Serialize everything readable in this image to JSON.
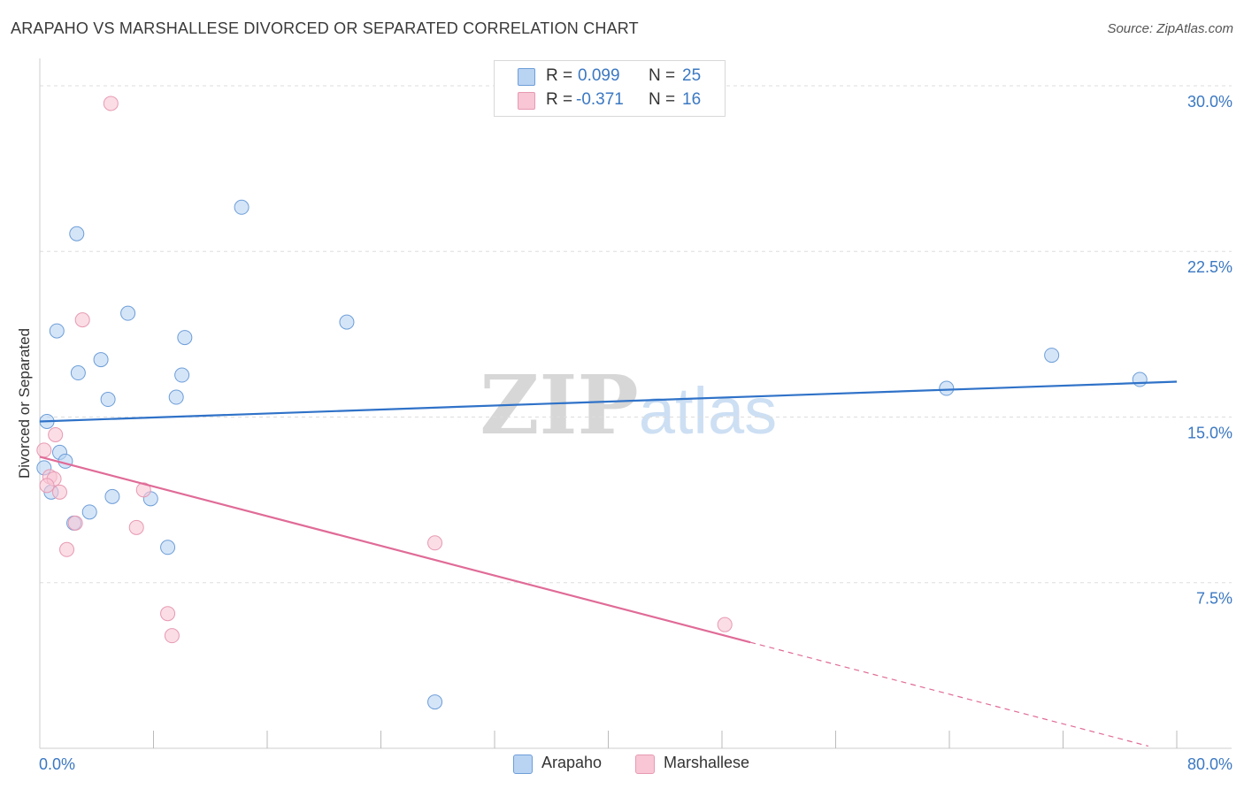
{
  "title": "ARAPAHO VS MARSHALLESE DIVORCED OR SEPARATED CORRELATION CHART",
  "source": "Source: ZipAtlas.com",
  "watermark": {
    "zip": "ZIP",
    "atlas": "atlas"
  },
  "legend_top": [
    {
      "r_label": "R =",
      "r_value": "0.099",
      "n_label": "N =",
      "n_value": "25"
    },
    {
      "r_label": "R =",
      "r_value": "-0.371",
      "n_label": "N =",
      "n_value": "16"
    }
  ],
  "colors": {
    "arapaho_fill": "#b9d3f3",
    "arapaho_stroke": "#6d9ed8",
    "arapaho_line": "#2f72c8",
    "marshallese_fill": "#f8c6d5",
    "marshallese_stroke": "#e79ab2",
    "marshallese_line": "#e06b97",
    "grid": "#dddddd",
    "tick_label": "#3b78c2"
  },
  "chart_data": {
    "type": "scatter",
    "title": "ARAPAHO VS MARSHALLESE DIVORCED OR SEPARATED CORRELATION CHART",
    "xlabel": "",
    "ylabel": "Divorced or Separated",
    "xlim": [
      0,
      80
    ],
    "ylim": [
      0,
      31.0
    ],
    "x_tick_labels": [
      "0.0%",
      "80.0%"
    ],
    "y_ticks": [
      7.5,
      15.0,
      22.5,
      30.0
    ],
    "y_tick_labels": [
      "7.5%",
      "15.0%",
      "22.5%",
      "30.0%"
    ],
    "grid": true,
    "series": [
      {
        "name": "Arapaho",
        "points": [
          {
            "x": 0.5,
            "y": 14.8
          },
          {
            "x": 1.2,
            "y": 18.9
          },
          {
            "x": 2.6,
            "y": 23.3
          },
          {
            "x": 14.2,
            "y": 24.5
          },
          {
            "x": 6.2,
            "y": 19.7
          },
          {
            "x": 10.2,
            "y": 18.6
          },
          {
            "x": 21.6,
            "y": 19.3
          },
          {
            "x": 4.3,
            "y": 17.6
          },
          {
            "x": 2.7,
            "y": 17.0
          },
          {
            "x": 10.0,
            "y": 16.9
          },
          {
            "x": 4.8,
            "y": 15.8
          },
          {
            "x": 9.6,
            "y": 15.9
          },
          {
            "x": 1.4,
            "y": 13.4
          },
          {
            "x": 1.8,
            "y": 13.0
          },
          {
            "x": 0.3,
            "y": 12.7
          },
          {
            "x": 0.8,
            "y": 11.6
          },
          {
            "x": 5.1,
            "y": 11.4
          },
          {
            "x": 7.8,
            "y": 11.3
          },
          {
            "x": 3.5,
            "y": 10.7
          },
          {
            "x": 2.4,
            "y": 10.2
          },
          {
            "x": 9.0,
            "y": 9.1
          },
          {
            "x": 27.8,
            "y": 2.1
          },
          {
            "x": 63.8,
            "y": 16.3
          },
          {
            "x": 71.2,
            "y": 17.8
          },
          {
            "x": 77.4,
            "y": 16.7
          }
        ],
        "trend": {
          "x1": 0,
          "y1": 14.8,
          "x2": 80,
          "y2": 16.6
        }
      },
      {
        "name": "Marshallese",
        "points": [
          {
            "x": 5.0,
            "y": 29.2
          },
          {
            "x": 3.0,
            "y": 19.4
          },
          {
            "x": 1.1,
            "y": 14.2
          },
          {
            "x": 0.3,
            "y": 13.5
          },
          {
            "x": 0.7,
            "y": 12.3
          },
          {
            "x": 1.0,
            "y": 12.2
          },
          {
            "x": 0.5,
            "y": 11.9
          },
          {
            "x": 1.4,
            "y": 11.6
          },
          {
            "x": 7.3,
            "y": 11.7
          },
          {
            "x": 2.5,
            "y": 10.2
          },
          {
            "x": 6.8,
            "y": 10.0
          },
          {
            "x": 1.9,
            "y": 9.0
          },
          {
            "x": 27.8,
            "y": 9.3
          },
          {
            "x": 9.0,
            "y": 6.1
          },
          {
            "x": 9.3,
            "y": 5.1
          },
          {
            "x": 48.2,
            "y": 5.6
          }
        ],
        "trend": {
          "x1": 0,
          "y1": 13.2,
          "x2": 50,
          "y2": 4.8
        },
        "trend_dashed": {
          "x1": 50,
          "y1": 4.8,
          "x2": 78,
          "y2": 0.1
        }
      }
    ]
  }
}
